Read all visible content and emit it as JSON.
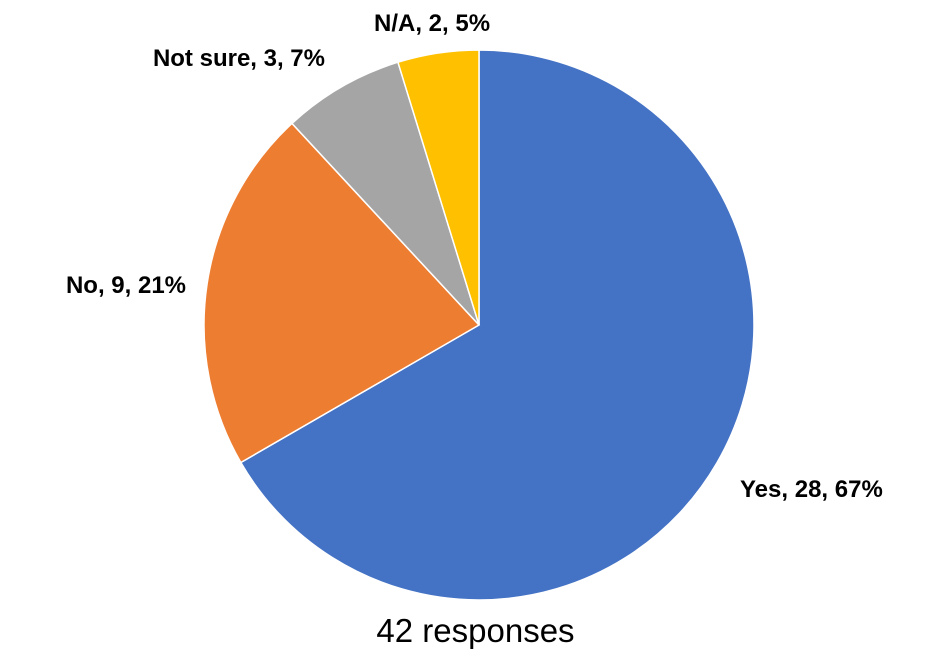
{
  "chart_data": {
    "type": "pie",
    "start_angle": "12 o'clock, clockwise",
    "slices": [
      {
        "label": "Yes, 28, 67%",
        "category": "Yes",
        "value": 28,
        "percent": 67,
        "color": "#4472C4"
      },
      {
        "label": "No, 9, 21%",
        "category": "No",
        "value": 9,
        "percent": 21,
        "color": "#ED7D31"
      },
      {
        "label": "Not sure, 3, 7%",
        "category": "Not sure",
        "value": 3,
        "percent": 7,
        "color": "#A5A5A5"
      },
      {
        "label": "N/A, 2, 5%",
        "category": "N/A",
        "value": 2,
        "percent": 5,
        "color": "#FFC000"
      }
    ],
    "total": 42
  },
  "caption": "42 responses"
}
